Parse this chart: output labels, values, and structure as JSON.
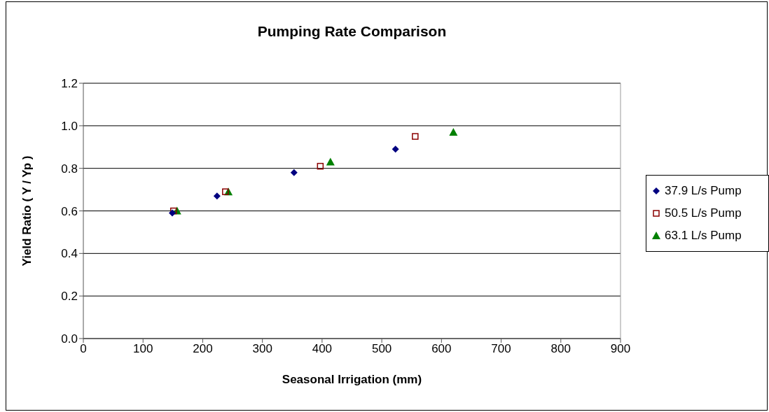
{
  "chart_data": {
    "type": "scatter",
    "title": "Pumping Rate Comparison",
    "xlabel": "Seasonal Irrigation (mm)",
    "ylabel": "Yield Ratio ( Y / Yp )",
    "xlim": [
      0,
      900
    ],
    "xticks": [
      0,
      100,
      200,
      300,
      400,
      500,
      600,
      700,
      800,
      900
    ],
    "ylim": [
      0,
      1.2
    ],
    "yticks": [
      {
        "value": 0,
        "label": "0.0"
      },
      {
        "value": 0.2,
        "label": "0.2"
      },
      {
        "value": 0.4,
        "label": "0.4"
      },
      {
        "value": 0.6,
        "label": "0.6"
      },
      {
        "value": 0.8,
        "label": "0.8"
      },
      {
        "value": 1,
        "label": "1.0"
      },
      {
        "value": 1.2,
        "label": "1.2"
      }
    ],
    "grid": "y",
    "legend": "right",
    "series": [
      {
        "name": "37.9 L/s Pump",
        "color": "#000080",
        "marker": "diamond",
        "x": [
          149,
          224,
          353,
          523
        ],
        "values": [
          0.59,
          0.67,
          0.78,
          0.89
        ]
      },
      {
        "name": "50.5 L/s Pump",
        "color": "#8b0000",
        "marker": "square",
        "x": [
          151,
          238,
          397,
          556
        ],
        "values": [
          0.6,
          0.69,
          0.81,
          0.95
        ]
      },
      {
        "name": "63.1 L/s Pump",
        "color": "#008000",
        "marker": "triangle",
        "x": [
          157,
          243,
          414,
          620
        ],
        "values": [
          0.6,
          0.69,
          0.83,
          0.97
        ]
      }
    ]
  }
}
